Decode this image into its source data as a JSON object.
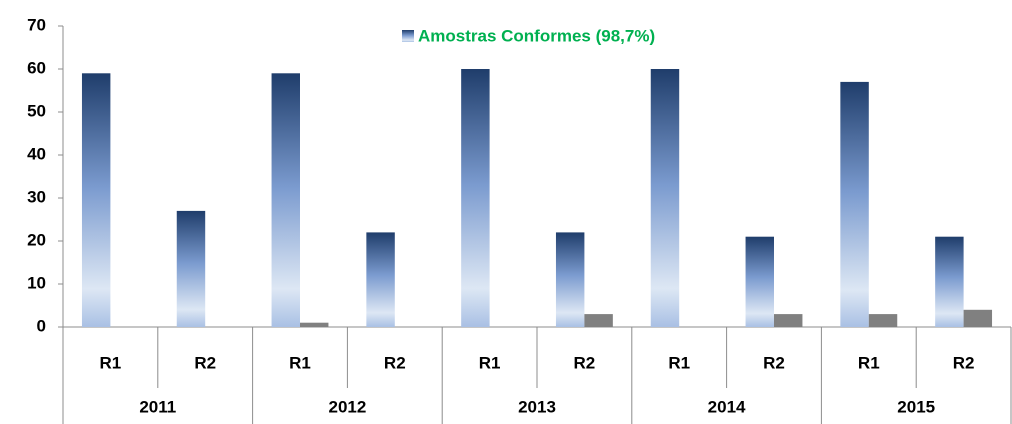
{
  "chart_data": {
    "type": "bar",
    "categories": [
      "R1",
      "R2",
      "R1",
      "R2",
      "R1",
      "R2",
      "R1",
      "R2",
      "R1",
      "R2"
    ],
    "groups": [
      "2011",
      "2012",
      "2013",
      "2014",
      "2015"
    ],
    "series": [
      {
        "name": "Amostras Conformes (98,7%)",
        "color": "#2a4f85",
        "values": [
          59,
          27,
          59,
          22,
          60,
          22,
          60,
          21,
          57,
          21
        ]
      },
      {
        "color": "#808080",
        "values": [
          0,
          0,
          1,
          0,
          0,
          3,
          0,
          3,
          3,
          4
        ]
      }
    ],
    "legend_color": "#00b050",
    "ylim": [
      0,
      70
    ],
    "yticks": [
      0,
      10,
      20,
      30,
      40,
      50,
      60,
      70
    ],
    "grid": false,
    "legend": "top"
  }
}
